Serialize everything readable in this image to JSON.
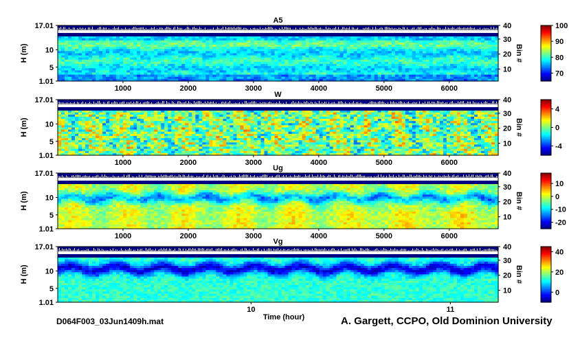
{
  "footer": {
    "filename": "D064F003_03Jun1409h.mat",
    "credit": "A. Gargett, CCPO, Old Dominion University"
  },
  "chart_data": [
    {
      "type": "heatmap",
      "title": "A5",
      "ylabel": "H (m)",
      "y_ticks": [
        "17.01",
        "10",
        "5",
        "1.01"
      ],
      "y_tick_values": [
        17.01,
        10,
        5,
        1.01
      ],
      "ylim": [
        1.01,
        17.01
      ],
      "right_ylabel": "Bin #",
      "right_ticks": [
        40,
        30,
        20,
        10
      ],
      "x_ticks": [
        1000,
        2000,
        3000,
        4000,
        5000,
        6000
      ],
      "xlim": [
        0,
        6750
      ],
      "colorbar": {
        "ticks": [
          100,
          90,
          80,
          70
        ],
        "range": [
          65,
          100
        ]
      },
      "colormap": "jet"
    },
    {
      "type": "heatmap",
      "title": "W",
      "ylabel": "H (m)",
      "y_ticks": [
        "17.01",
        "10",
        "5",
        "1.01"
      ],
      "y_tick_values": [
        17.01,
        10,
        5,
        1.01
      ],
      "ylim": [
        1.01,
        17.01
      ],
      "right_ylabel": "Bin #",
      "right_ticks": [
        40,
        30,
        20,
        10
      ],
      "x_ticks": [
        1000,
        2000,
        3000,
        4000,
        5000,
        6000
      ],
      "xlim": [
        0,
        6750
      ],
      "colorbar": {
        "ticks": [
          4,
          0,
          -4
        ],
        "range": [
          -6,
          6
        ]
      },
      "colormap": "jet"
    },
    {
      "type": "heatmap",
      "title": "Ug",
      "ylabel": "H (m)",
      "y_ticks": [
        "17.01",
        "10",
        "5",
        "1.01"
      ],
      "y_tick_values": [
        17.01,
        10,
        5,
        1.01
      ],
      "ylim": [
        1.01,
        17.01
      ],
      "right_ylabel": "Bin #",
      "right_ticks": [
        40,
        30,
        20,
        10
      ],
      "x_ticks": [
        1000,
        2000,
        3000,
        4000,
        5000,
        6000
      ],
      "xlim": [
        0,
        6750
      ],
      "colorbar": {
        "ticks": [
          10,
          0,
          -10,
          -20
        ],
        "range": [
          -25,
          18
        ]
      },
      "colormap": "jet"
    },
    {
      "type": "heatmap",
      "title": "Vg",
      "ylabel": "H (m)",
      "y_ticks": [
        "17.01",
        "10",
        "5",
        "1.01"
      ],
      "y_tick_values": [
        17.01,
        10,
        5,
        1.01
      ],
      "ylim": [
        1.01,
        17.01
      ],
      "right_ylabel": "Bin #",
      "right_ticks": [
        40,
        30,
        20,
        10
      ],
      "x_ticks": [
        "10",
        "11"
      ],
      "x_tick_values": [
        10,
        11
      ],
      "xlim": [
        9.03,
        11.24
      ],
      "xlabel": "Time (hour)",
      "colorbar": {
        "ticks": [
          40,
          20,
          0
        ],
        "range": [
          -10,
          45
        ]
      },
      "colormap": "jet"
    }
  ]
}
